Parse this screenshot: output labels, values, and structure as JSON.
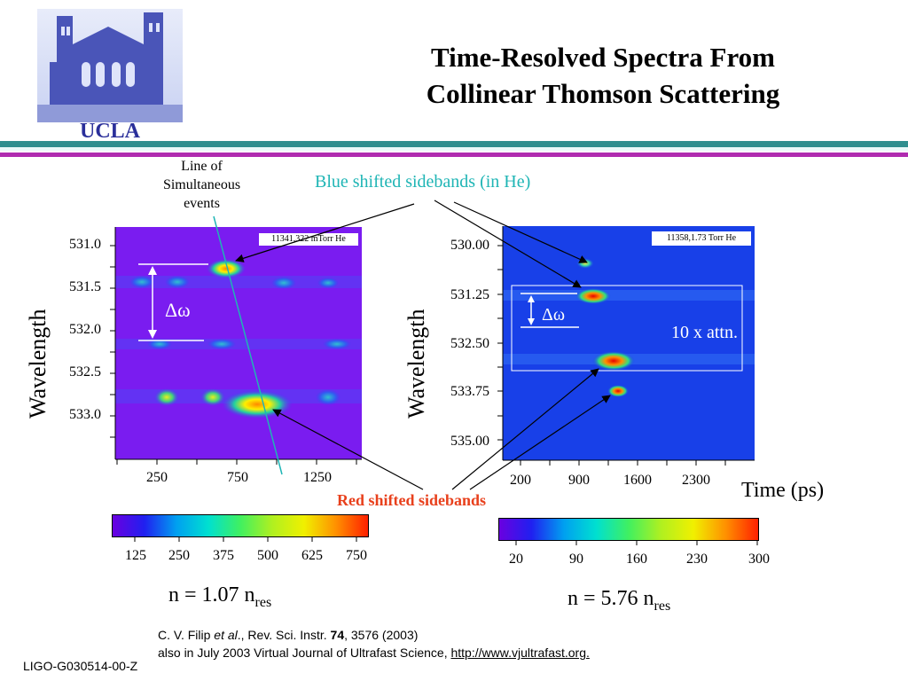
{
  "header": {
    "logo_text": "UCLA",
    "title_line1": "Time-Resolved Spectra From",
    "title_line2": "Collinear Thomson Scattering"
  },
  "annotations": {
    "line_of_simultaneous_1": "Line of",
    "line_of_simultaneous_2": "Simultaneous",
    "line_of_simultaneous_3": "events",
    "blue_sidebands": "Blue shifted sidebands (in He)",
    "red_sidebands": "Red shifted sidebands",
    "time_label": "Time (ps)",
    "attn_label": "10 x attn.",
    "delta_omega": "Δω"
  },
  "colors": {
    "blue_annotation": "#1fb5b5",
    "red_annotation": "#e8401c",
    "band_teal": "#2f8f8f",
    "band_magenta": "#b02cb0",
    "plot_bg_left": "#7a1cf0",
    "plot_bg_right": "#1840e8"
  },
  "chart_data": [
    {
      "type": "heatmap",
      "inset_label": "11341,322 mTorr He",
      "ylabel": "Wavelength",
      "yticks": [
        "531.0",
        "531.5",
        "532.0",
        "532.5",
        "533.0"
      ],
      "xticks": [
        "250",
        "750",
        "1250"
      ],
      "colorbar_ticks": [
        "125",
        "250",
        "375",
        "500",
        "625",
        "750"
      ],
      "density_label": "n = 1.07 n",
      "density_sub": "res"
    },
    {
      "type": "heatmap",
      "inset_label": "11358,1.73 Torr He",
      "ylabel": "Wavelength",
      "yticks": [
        "530.00",
        "531.25",
        "532.50",
        "533.75",
        "535.00"
      ],
      "xticks": [
        "200",
        "900",
        "1600",
        "2300"
      ],
      "colorbar_ticks": [
        "20",
        "90",
        "160",
        "230",
        "300"
      ],
      "density_label": "n = 5.76 n",
      "density_sub": "res"
    }
  ],
  "citation": {
    "line1_a": "C. V. Filip ",
    "line1_etal": "et al",
    "line1_b": "., Rev. Sci. Instr. ",
    "line1_vol": "74",
    "line1_c": ", 3576 (2003)",
    "line2_a": "also in July 2003 Virtual Journal of Ultrafast Science, ",
    "line2_link": "http://www.vjultrafast.org."
  },
  "footer": {
    "doc_id": "LIGO-G030514-00-Z"
  }
}
